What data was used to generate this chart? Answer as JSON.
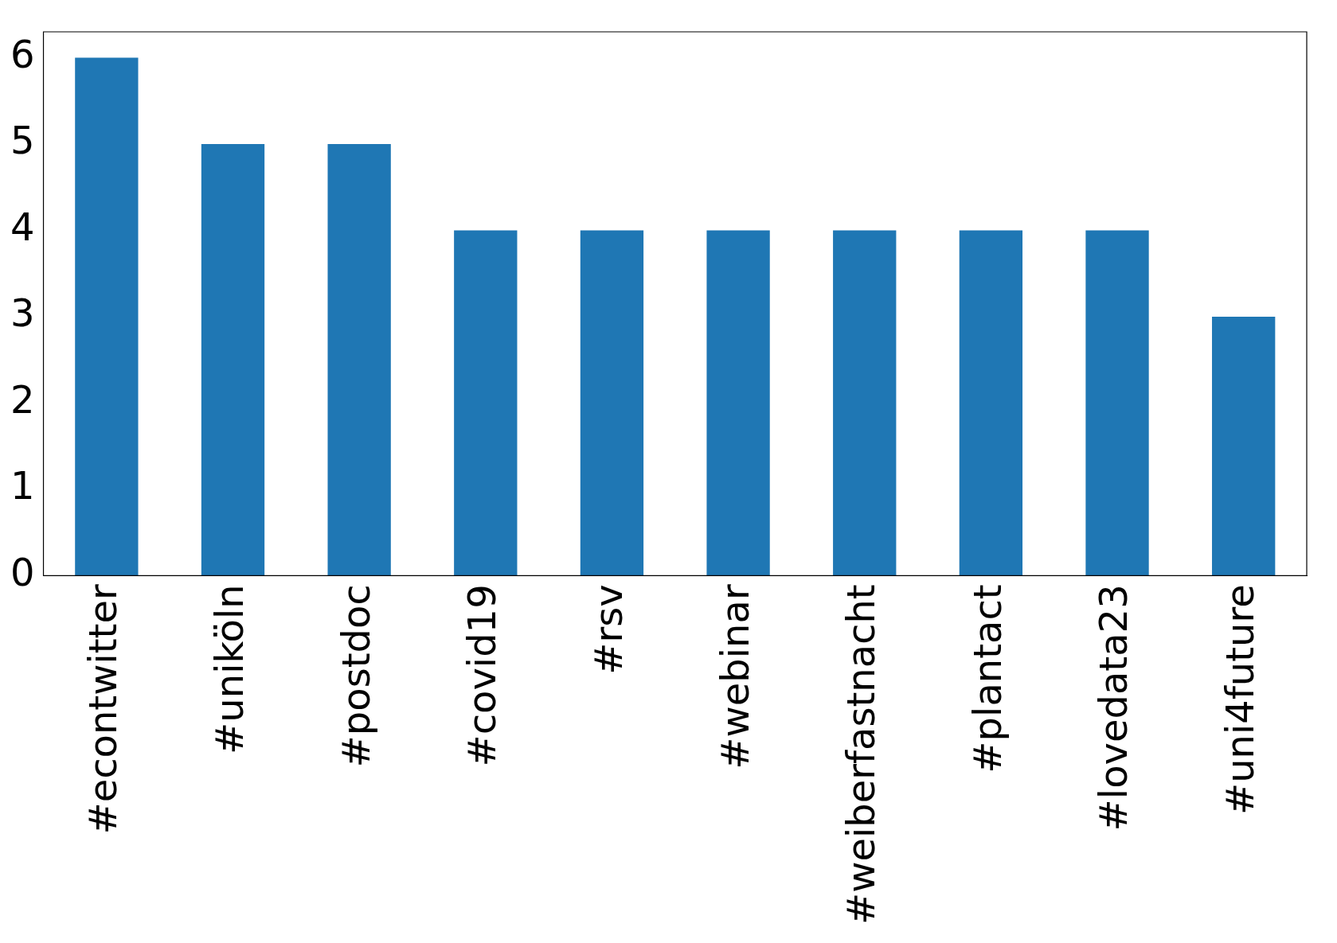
{
  "chart_data": {
    "type": "bar",
    "categories": [
      "#econtwitter",
      "#uniköln",
      "#postdoc",
      "#covid19",
      "#rsv",
      "#webinar",
      "#weiberfastnacht",
      "#plantact",
      "#lovedata23",
      "#uni4future"
    ],
    "values": [
      6,
      5,
      5,
      4,
      4,
      4,
      4,
      4,
      4,
      3
    ],
    "color": "#1f77b4",
    "ylim": [
      0,
      6.3
    ],
    "yticks": [
      0,
      1,
      2,
      3,
      4,
      5,
      6
    ],
    "grid": false,
    "legend": false
  }
}
